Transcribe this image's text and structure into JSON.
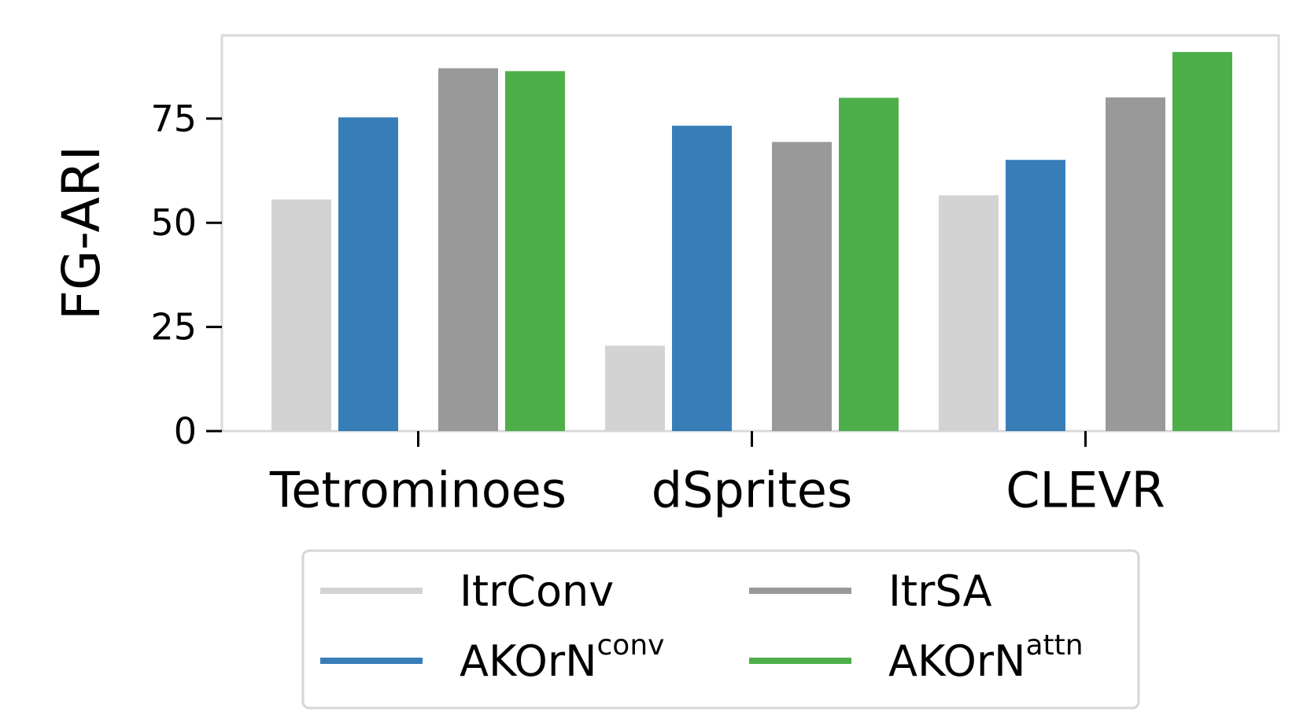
{
  "chart_data": {
    "type": "bar",
    "title": "",
    "xlabel": "",
    "ylabel": "FG-ARI",
    "categories": [
      "Tetrominoes",
      "dSprites",
      "CLEVR"
    ],
    "ylim": [
      0,
      95
    ],
    "yticks": [
      0,
      25,
      50,
      75
    ],
    "grid": false,
    "legend_position": "bottom",
    "series": [
      {
        "name": "ItrConv",
        "label_sup": "",
        "color": "#d3d3d3",
        "values": [
          55.6,
          20.5,
          56.6
        ]
      },
      {
        "name": "AKOrN",
        "label_sup": "conv",
        "color": "#377eb8",
        "values": [
          75.3,
          73.3,
          65.1
        ]
      },
      {
        "name": "ItrSA",
        "label_sup": "",
        "color": "#999999",
        "values": [
          87.1,
          69.4,
          80.1
        ]
      },
      {
        "name": "AKOrN",
        "label_sup": "attn",
        "color": "#4daf4a",
        "values": [
          86.4,
          80.0,
          91.0
        ]
      }
    ]
  }
}
